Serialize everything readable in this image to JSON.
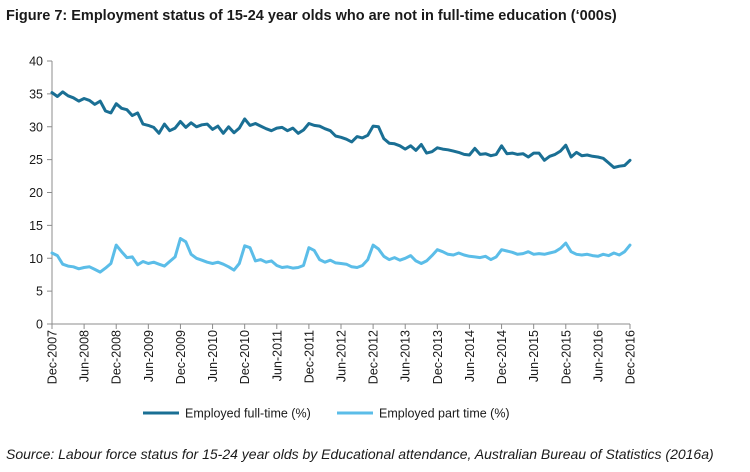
{
  "title": "Figure 7: Employment status of 15-24 year olds who are not in full-time education (‘000s)",
  "source": "Source: Labour force status for 15-24 year olds by Educational attendance, Australian Bureau of Statistics (2016a)",
  "colors": {
    "full_time": "#1a6f94",
    "part_time": "#5bbde8",
    "axis": "#8c8c8c"
  },
  "chart_data": {
    "type": "line",
    "title": "",
    "xlabel": "",
    "ylabel": "",
    "ylim": [
      0,
      40
    ],
    "yticks": [
      0,
      5,
      10,
      15,
      20,
      25,
      30,
      35,
      40
    ],
    "grid": false,
    "legend": "bottom",
    "x_start": "Dec-2007",
    "x_end": "Dec-2016",
    "x_ticks": [
      "Dec-2007",
      "Jun-2008",
      "Dec-2008",
      "Jun-2009",
      "Dec-2009",
      "Jun-2010",
      "Dec-2010",
      "Jun-2011",
      "Dec-2011",
      "Jun-2012",
      "Dec-2012",
      "Jun-2013",
      "Dec-2013",
      "Jun-2014",
      "Dec-2014",
      "Jun-2015",
      "Dec-2015",
      "Jun-2016",
      "Dec-2016"
    ],
    "series": [
      {
        "name": "Employed full-time (%)",
        "key": "full_time",
        "values": [
          35.2,
          34.6,
          35.3,
          34.7,
          34.4,
          33.9,
          34.3,
          34.0,
          33.4,
          33.9,
          32.4,
          32.1,
          33.5,
          32.8,
          32.6,
          31.7,
          32.1,
          30.4,
          30.2,
          29.9,
          29.0,
          30.4,
          29.4,
          29.8,
          30.8,
          29.9,
          30.6,
          30.0,
          30.3,
          30.4,
          29.6,
          30.1,
          29.0,
          30.0,
          29.1,
          29.8,
          31.2,
          30.2,
          30.5,
          30.1,
          29.7,
          29.4,
          29.8,
          29.9,
          29.4,
          29.8,
          29.0,
          29.5,
          30.5,
          30.2,
          30.1,
          29.7,
          29.4,
          28.6,
          28.4,
          28.1,
          27.7,
          28.5,
          28.3,
          28.7,
          30.1,
          30.0,
          28.2,
          27.5,
          27.4,
          27.1,
          26.6,
          27.1,
          26.4,
          27.3,
          26.0,
          26.2,
          26.8,
          26.6,
          26.5,
          26.3,
          26.1,
          25.8,
          25.7,
          26.7,
          25.8,
          25.9,
          25.6,
          25.8,
          27.1,
          25.9,
          26.0,
          25.8,
          25.9,
          25.4,
          26.0,
          26.0,
          24.9,
          25.5,
          25.8,
          26.3,
          27.2,
          25.4,
          26.1,
          25.6,
          25.7,
          25.5,
          25.4,
          25.2,
          24.5,
          23.8,
          24.0,
          24.1,
          24.9
        ]
      },
      {
        "name": "Employed part time (%)",
        "key": "part_time",
        "values": [
          10.8,
          10.4,
          9.1,
          8.8,
          8.7,
          8.4,
          8.6,
          8.7,
          8.3,
          7.9,
          8.5,
          9.2,
          12.0,
          11.0,
          10.1,
          10.2,
          9.0,
          9.5,
          9.2,
          9.4,
          9.1,
          8.8,
          9.5,
          10.2,
          13.0,
          12.5,
          10.6,
          10.0,
          9.7,
          9.4,
          9.2,
          9.4,
          9.1,
          8.7,
          8.2,
          9.2,
          11.9,
          11.6,
          9.6,
          9.8,
          9.4,
          9.6,
          8.9,
          8.6,
          8.7,
          8.5,
          8.6,
          8.9,
          11.6,
          11.2,
          9.8,
          9.4,
          9.7,
          9.3,
          9.2,
          9.1,
          8.7,
          8.6,
          8.9,
          9.8,
          12.0,
          11.4,
          10.3,
          9.8,
          10.1,
          9.7,
          10.0,
          10.4,
          9.6,
          9.2,
          9.6,
          10.4,
          11.3,
          11.0,
          10.6,
          10.5,
          10.8,
          10.5,
          10.3,
          10.2,
          10.1,
          10.3,
          9.8,
          10.2,
          11.3,
          11.1,
          10.9,
          10.6,
          10.7,
          11.0,
          10.6,
          10.7,
          10.6,
          10.8,
          11.0,
          11.5,
          12.3,
          11.0,
          10.6,
          10.5,
          10.6,
          10.4,
          10.3,
          10.6,
          10.4,
          10.8,
          10.5,
          11.0,
          12.0
        ]
      }
    ]
  }
}
